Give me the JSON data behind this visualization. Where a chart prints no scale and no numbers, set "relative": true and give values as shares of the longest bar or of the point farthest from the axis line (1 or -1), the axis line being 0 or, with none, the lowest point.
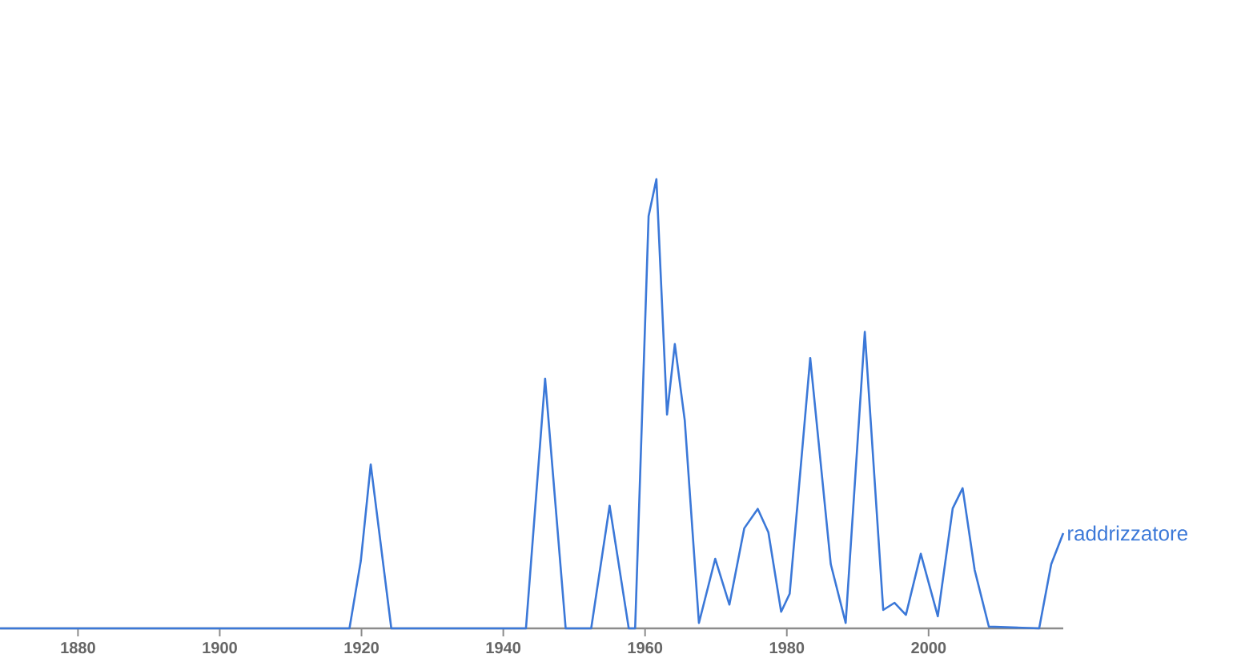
{
  "chart_data": {
    "type": "line",
    "relative": true,
    "xlim": [
      1869,
      2019
    ],
    "xticks": [
      1880,
      1900,
      1920,
      1940,
      1960,
      1980,
      2000
    ],
    "x": [
      1869,
      1918.3,
      1919.9,
      1921.3,
      1924.2,
      1943.2,
      1945.9,
      1948.8,
      1952.4,
      1955,
      1957.7,
      1958.6,
      1960.5,
      1961.6,
      1963.1,
      1964.2,
      1965.6,
      1967.6,
      1969.9,
      1971.9,
      1974.0,
      1975.9,
      1977.4,
      1979.2,
      1980.4,
      1983.3,
      1986.2,
      1988.3,
      1991.0,
      1993.6,
      1995.2,
      1996.8,
      1998.9,
      2001.3,
      2003.4,
      2004.8,
      2006.5,
      2008.5,
      2015.6,
      2017.3,
      2019.0
    ],
    "series": [
      {
        "name": "raddrizzatore",
        "color": "#3b78d8",
        "values": [
          0,
          0,
          0.15,
          0.365,
          0,
          0,
          0.556,
          0,
          0,
          0.273,
          0,
          0,
          0.918,
          1,
          0.476,
          0.633,
          0.463,
          0.012,
          0.155,
          0.053,
          0.223,
          0.266,
          0.214,
          0.037,
          0.077,
          0.602,
          0.143,
          0.012,
          0.66,
          0.041,
          0.057,
          0.03,
          0.166,
          0.027,
          0.267,
          0.312,
          0.13,
          0.004,
          0,
          0.143,
          0.212
        ]
      }
    ]
  }
}
